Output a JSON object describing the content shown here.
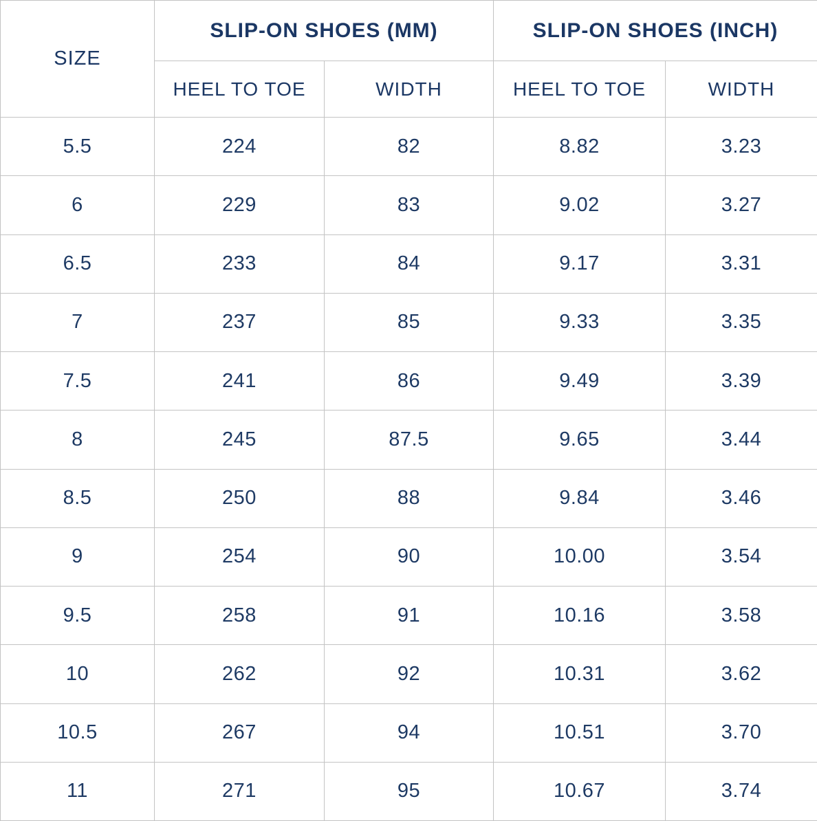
{
  "colors": {
    "text": "#1e3a64",
    "header_text": "#1b3764",
    "border": "#c3c3c3",
    "bg": "#ffffff"
  },
  "chart_data": {
    "type": "table",
    "corner_header": "SIZE",
    "groups": [
      {
        "label": "SLIP-ON SHOES (MM)",
        "columns": [
          "HEEL TO TOE",
          "WIDTH"
        ]
      },
      {
        "label": "SLIP-ON SHOES (INCH)",
        "columns": [
          "HEEL TO TOE",
          "WIDTH"
        ]
      }
    ],
    "columns_flat": [
      "SIZE",
      "MM HEEL TO TOE",
      "MM WIDTH",
      "INCH HEEL TO TOE",
      "INCH WIDTH"
    ],
    "rows": [
      [
        "5.5",
        "224",
        "82",
        "8.82",
        "3.23"
      ],
      [
        "6",
        "229",
        "83",
        "9.02",
        "3.27"
      ],
      [
        "6.5",
        "233",
        "84",
        "9.17",
        "3.31"
      ],
      [
        "7",
        "237",
        "85",
        "9.33",
        "3.35"
      ],
      [
        "7.5",
        "241",
        "86",
        "9.49",
        "3.39"
      ],
      [
        "8",
        "245",
        "87.5",
        "9.65",
        "3.44"
      ],
      [
        "8.5",
        "250",
        "88",
        "9.84",
        "3.46"
      ],
      [
        "9",
        "254",
        "90",
        "10.00",
        "3.54"
      ],
      [
        "9.5",
        "258",
        "91",
        "10.16",
        "3.58"
      ],
      [
        "10",
        "262",
        "92",
        "10.31",
        "3.62"
      ],
      [
        "10.5",
        "267",
        "94",
        "10.51",
        "3.70"
      ],
      [
        "11",
        "271",
        "95",
        "10.67",
        "3.74"
      ]
    ]
  }
}
